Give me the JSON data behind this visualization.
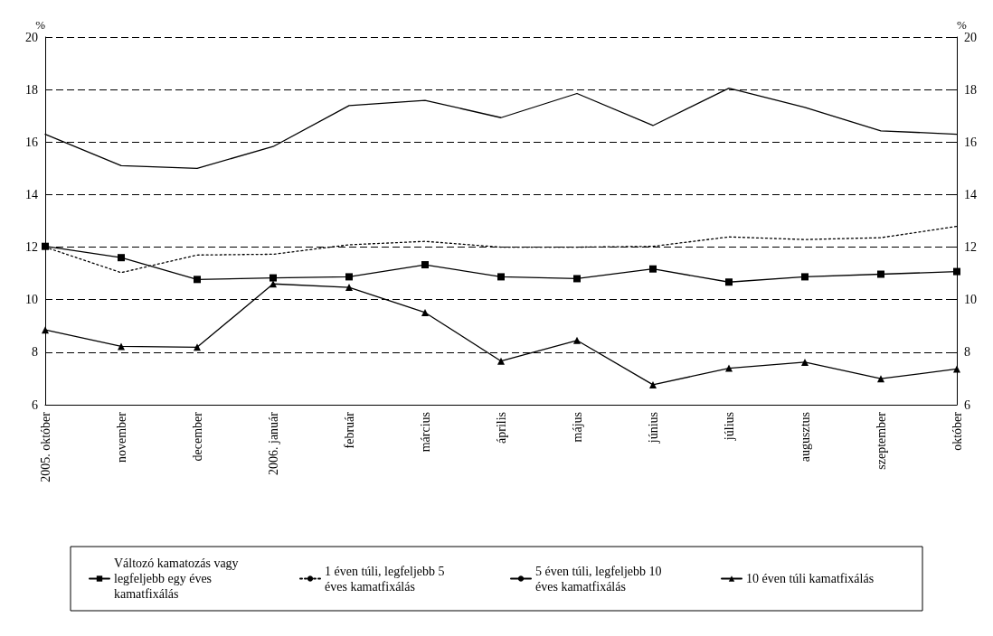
{
  "chart_data": {
    "type": "line",
    "categories": [
      "2005. október",
      "november",
      "december",
      "2006. január",
      "február",
      "március",
      "április",
      "május",
      "június",
      "július",
      "augusztus",
      "szeptember",
      "október"
    ],
    "series": [
      {
        "name": "Változó kamatozás vagy legfeljebb egy éves kamatfixálás",
        "color": "#000000",
        "marker": "square",
        "line_style": "solid",
        "values": [
          12.03,
          11.6,
          10.77,
          10.83,
          10.87,
          11.33,
          10.87,
          10.8,
          11.17,
          10.67,
          10.87,
          10.97,
          11.07
        ]
      },
      {
        "name": "1 éven túli, legfeljebb 5 éves kamatfixálás",
        "color": "#000000",
        "marker": "none",
        "line_style": "dotted",
        "values": [
          12.0,
          11.03,
          11.7,
          11.73,
          12.09,
          12.22,
          12.0,
          12.0,
          12.03,
          12.39,
          12.29,
          12.36,
          12.79
        ]
      },
      {
        "name": "5 éven túli, legfeljebb 10 éves kamatfixálás",
        "color": "#000000",
        "marker": "none",
        "line_style": "solid",
        "values": [
          16.3,
          15.1,
          15.0,
          15.83,
          17.39,
          17.59,
          16.93,
          17.85,
          16.63,
          18.05,
          17.32,
          16.43,
          16.3
        ]
      },
      {
        "name": "10 éven túli kamatfixálás",
        "color": "#000000",
        "marker": "triangle",
        "line_style": "solid",
        "values": [
          8.85,
          8.22,
          8.19,
          10.6,
          10.47,
          9.51,
          7.66,
          8.45,
          6.76,
          7.39,
          7.62,
          6.99,
          7.36
        ]
      }
    ],
    "ylabel": "%",
    "y2label": "%",
    "ylim": [
      6,
      20
    ],
    "yticks": [
      6,
      8,
      10,
      12,
      14,
      16,
      18,
      20
    ],
    "y2lim": [
      6,
      20
    ],
    "y2ticks": [
      6,
      8,
      10,
      12,
      14,
      16,
      18,
      20
    ],
    "grid": "y",
    "legend": "bottom"
  }
}
